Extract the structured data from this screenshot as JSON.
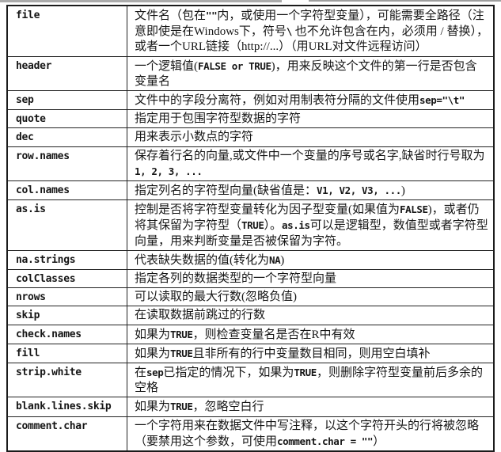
{
  "page": {
    "background": "#ffffff",
    "border_color": "#1b1b1b",
    "text_color": "#161616"
  },
  "table": {
    "rows": [
      {
        "param": "file",
        "desc": [
          {
            "text": "文件名（包在"
          },
          {
            "code": "\"\""
          },
          {
            "text": "内，或使用一个字符型变量），可能需要全路径（注意即使是在Windows下，符号"
          },
          {
            "code": "\\"
          },
          {
            "text": " 也不允许包含在内，必须用 / 替换），或者一个URL链接（http://...）（用URL对文件远程访问）"
          }
        ]
      },
      {
        "param": "header",
        "desc": [
          {
            "text": "一个逻辑值("
          },
          {
            "code": "FALSE or TRUE"
          },
          {
            "text": ")，用来反映这个文件的第一行是否包含变量名"
          }
        ]
      },
      {
        "param": "sep",
        "desc": [
          {
            "text": "文件中的字段分离符，例如对用制表符分隔的文件使用"
          },
          {
            "code": "sep=\"\\t\""
          }
        ]
      },
      {
        "param": "quote",
        "desc": [
          {
            "text": "指定用于包围字符型数据的字符"
          }
        ]
      },
      {
        "param": "dec",
        "desc": [
          {
            "text": "用来表示小数点的字符"
          }
        ]
      },
      {
        "param": "row.names",
        "desc": [
          {
            "text": "保存着行名的向量,或文件中一个变量的序号或名字,缺省时行号取为"
          },
          {
            "code": "1, 2, 3, ..."
          }
        ]
      },
      {
        "param": "col.names",
        "desc": [
          {
            "text": "指定列名的字符型向量(缺省值是："
          },
          {
            "code": "V1, V2, V3, ..."
          },
          {
            "text": ")"
          }
        ]
      },
      {
        "param": "as.is",
        "desc": [
          {
            "text": "控制是否将字符型变量转化为因子型变量(如果值为"
          },
          {
            "code": "FALSE"
          },
          {
            "text": ")，或者仍将其保留为字符型（"
          },
          {
            "code": "TRUE"
          },
          {
            "text": "）。"
          },
          {
            "code": "as.is"
          },
          {
            "text": "可以是逻辑型，数值型或者字符型向量，用来判断变量是否被保留为字符。"
          }
        ]
      },
      {
        "param": "na.strings",
        "desc": [
          {
            "text": "代表缺失数据的值(转化为"
          },
          {
            "code": "NA"
          },
          {
            "text": ")"
          }
        ]
      },
      {
        "param": "colClasses",
        "desc": [
          {
            "text": "指定各列的数据类型的一个字符型向量"
          }
        ]
      },
      {
        "param": "nrows",
        "desc": [
          {
            "text": "可以读取的最大行数(忽略负值)"
          }
        ]
      },
      {
        "param": "skip",
        "desc": [
          {
            "text": "在读取数据前跳过的行数"
          }
        ]
      },
      {
        "param": "check.names",
        "desc": [
          {
            "text": "如果为"
          },
          {
            "code": "TRUE"
          },
          {
            "text": "，则检查变量名是否在R中有效"
          }
        ]
      },
      {
        "param": "fill",
        "desc": [
          {
            "text": "如果为"
          },
          {
            "code": "TRUE"
          },
          {
            "text": "且非所有的行中变量数目相同，则用空白填补"
          }
        ]
      },
      {
        "param": "strip.white",
        "desc": [
          {
            "text": "在"
          },
          {
            "code": "sep"
          },
          {
            "text": "已指定的情况下，如果为"
          },
          {
            "code": "TRUE"
          },
          {
            "text": "，则删除字符型变量前后多余的空格"
          }
        ]
      },
      {
        "param": "blank.lines.skip",
        "desc": [
          {
            "text": "如果为"
          },
          {
            "code": "TRUE"
          },
          {
            "text": "，忽略空白行"
          }
        ]
      },
      {
        "param": "comment.char",
        "desc": [
          {
            "text": "一个字符用来在数据文件中写注释，以这个字符开头的行将被忽略（要禁用这个参数，可使用"
          },
          {
            "code": "comment.char = \"\""
          },
          {
            "text": "）"
          }
        ]
      }
    ]
  }
}
